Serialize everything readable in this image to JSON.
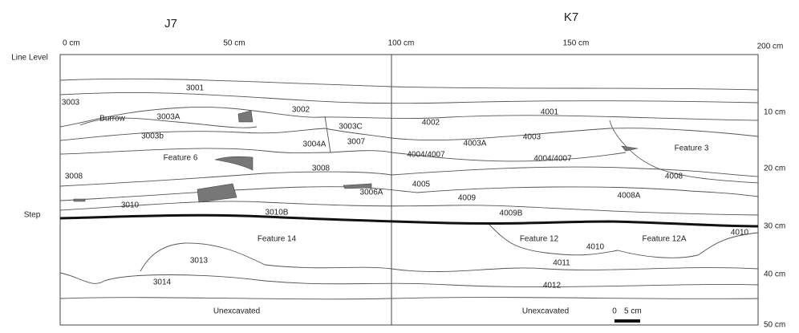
{
  "grid_labels": [
    "J7",
    "K7"
  ],
  "horizontal_scale": [
    "0 cm",
    "50 cm",
    "100 cm",
    "150 cm",
    "200 cm"
  ],
  "depth_scale": [
    "10 cm",
    "20 cm",
    "30 cm",
    "40 cm",
    "50 cm"
  ],
  "side_labels": [
    "Line Level",
    "Step"
  ],
  "contexts": [
    "3001",
    "3003",
    "3002",
    "Burrow",
    "3003A",
    "3003C",
    "3003b",
    "3004A",
    "3007",
    "Feature 6",
    "3008",
    "3008",
    "3006A",
    "3010",
    "3010B",
    "Feature 14",
    "3013",
    "3014",
    "Unexcavated",
    "4001",
    "4002",
    "4003",
    "4003A",
    "4004/4007",
    "4004/4007",
    "Feature 3",
    "4008",
    "4005",
    "4009",
    "4008A",
    "4009B",
    "Feature 12",
    "4010",
    "Feature 12A",
    "4010",
    "4011",
    "4012",
    "Unexcavated"
  ],
  "scale_bar": [
    "0",
    "5 cm"
  ]
}
